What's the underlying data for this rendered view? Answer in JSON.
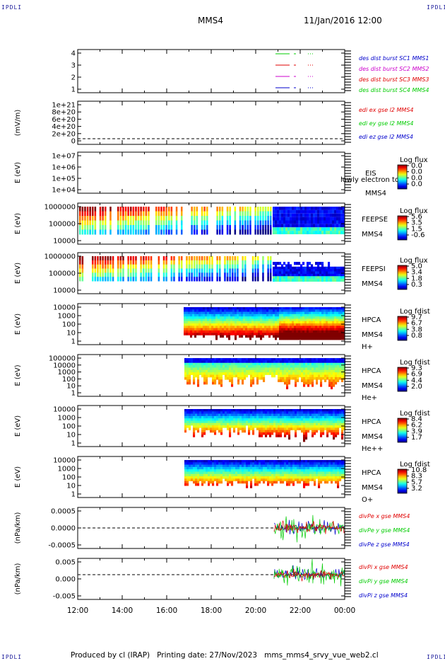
{
  "corners": {
    "top_left": "IPDLI",
    "top_right": "IPDLI",
    "bottom_left": "IPDLI",
    "bottom_right": "IPDLI"
  },
  "header": {
    "spacecraft": "MMS4",
    "date_time": "11/Jan/2016 12:00"
  },
  "footer": {
    "producer": "Produced by cl (IRAP)",
    "printing": "Printing date: 27/Nov/2023",
    "filename": "mms_mms4_srvy_vue_web2.cl"
  },
  "colors": {
    "red": "#e00000",
    "green": "#00cc00",
    "blue": "#0000cc",
    "magenta": "#cc00cc",
    "frame": "#000000"
  },
  "chart_data": [
    {
      "type": "line",
      "ylabel": "",
      "yticks": [
        "4",
        "3",
        "2",
        "1"
      ],
      "legend": [
        "des dist burst SC1 MMS1",
        "des dist burst SC2 MMS2",
        "des dist burst SC3 MMS3",
        "des dist burst SC4 MMS4"
      ],
      "legend_colors": [
        "#0000cc",
        "#cc00cc",
        "#e00000",
        "#00cc00"
      ]
    },
    {
      "type": "line",
      "ylabel": "(mV/m)",
      "yticks": [
        "1e+21",
        "8e+20",
        "6e+20",
        "4e+20",
        "2e+20",
        "0"
      ],
      "legend": [
        "edi ex gse l2 MMS4",
        "edi ey gse l2 MMS4",
        "edi ez gse l2 MMS4"
      ],
      "legend_colors": [
        "#e00000",
        "#00cc00",
        "#0000cc"
      ]
    },
    {
      "type": "heatmap",
      "ylabel": "E (eV)",
      "yticks": [
        "1e+07",
        "1e+06",
        "1e+05",
        "1e+04"
      ],
      "labels": [
        "EIS",
        "MMS4"
      ],
      "overlay": "lowly electron to",
      "colorbar_title": "Log flux",
      "colorbar_ticks": [
        "0.0",
        "0.0",
        "0.0",
        "0.0"
      ]
    },
    {
      "type": "heatmap",
      "ylabel": "E (eV)",
      "yticks": [
        "1000000",
        "100000",
        "10000"
      ],
      "labels": [
        "FEEPSE",
        "MMS4"
      ],
      "colorbar_title": "Log flux",
      "colorbar_ticks": [
        "5.6",
        "3.5",
        "1.5",
        "-0.6"
      ]
    },
    {
      "type": "heatmap",
      "ylabel": "E (eV)",
      "yticks": [
        "1000000",
        "100000",
        "10000"
      ],
      "labels": [
        "FEEPSI",
        "MMS4"
      ],
      "colorbar_title": "Log flux",
      "colorbar_ticks": [
        "5.0",
        "3.4",
        "1.8",
        "0.3"
      ]
    },
    {
      "type": "heatmap",
      "ylabel": "E (eV)",
      "yticks": [
        "10000",
        "1000",
        "100",
        "10",
        "1"
      ],
      "labels": [
        "HPCA",
        "MMS4",
        "H+"
      ],
      "colorbar_title": "Log fdist",
      "colorbar_ticks": [
        "9.7",
        "6.7",
        "3.8",
        "0.8"
      ]
    },
    {
      "type": "heatmap",
      "ylabel": "E (eV)",
      "yticks": [
        "100000",
        "10000",
        "1000",
        "100",
        "10",
        "1"
      ],
      "labels": [
        "HPCA",
        "MMS4",
        "He+"
      ],
      "colorbar_title": "Log fdist",
      "colorbar_ticks": [
        "9.3",
        "6.9",
        "4.4",
        "2.0"
      ]
    },
    {
      "type": "heatmap",
      "ylabel": "E (eV)",
      "yticks": [
        "10000",
        "1000",
        "100",
        "10",
        "1"
      ],
      "labels": [
        "HPCA",
        "MMS4",
        "He++"
      ],
      "colorbar_title": "Log fdist",
      "colorbar_ticks": [
        "8.4",
        "6.2",
        "3.9",
        "1.7"
      ]
    },
    {
      "type": "heatmap",
      "ylabel": "E (eV)",
      "yticks": [
        "10000",
        "1000",
        "100",
        "10",
        "1"
      ],
      "labels": [
        "HPCA",
        "MMS4",
        "O+"
      ],
      "colorbar_title": "Log fdist",
      "colorbar_ticks": [
        "10.8",
        "8.3",
        "5.7",
        "3.2"
      ]
    },
    {
      "type": "line",
      "ylabel": "(nPa/km)",
      "yticks": [
        "0.0005",
        "0.0000",
        "-0.0005"
      ],
      "legend": [
        "divPe x gse MMS4",
        "divPe y gse MMS4",
        "divPe z gse MMS4"
      ],
      "legend_colors": [
        "#e00000",
        "#00cc00",
        "#0000cc"
      ]
    },
    {
      "type": "line",
      "ylabel": "(nPa/km)",
      "yticks": [
        "0.005",
        "0.000",
        "-0.005"
      ],
      "legend": [
        "divPi x gse MMS4",
        "divPi y gse MMS4",
        "divPi z gse MMS4"
      ],
      "legend_colors": [
        "#e00000",
        "#00cc00",
        "#0000cc"
      ]
    }
  ],
  "x_axis": {
    "ticks": [
      "12:00",
      "14:00",
      "16:00",
      "18:00",
      "20:00",
      "22:00",
      "00:00"
    ]
  }
}
